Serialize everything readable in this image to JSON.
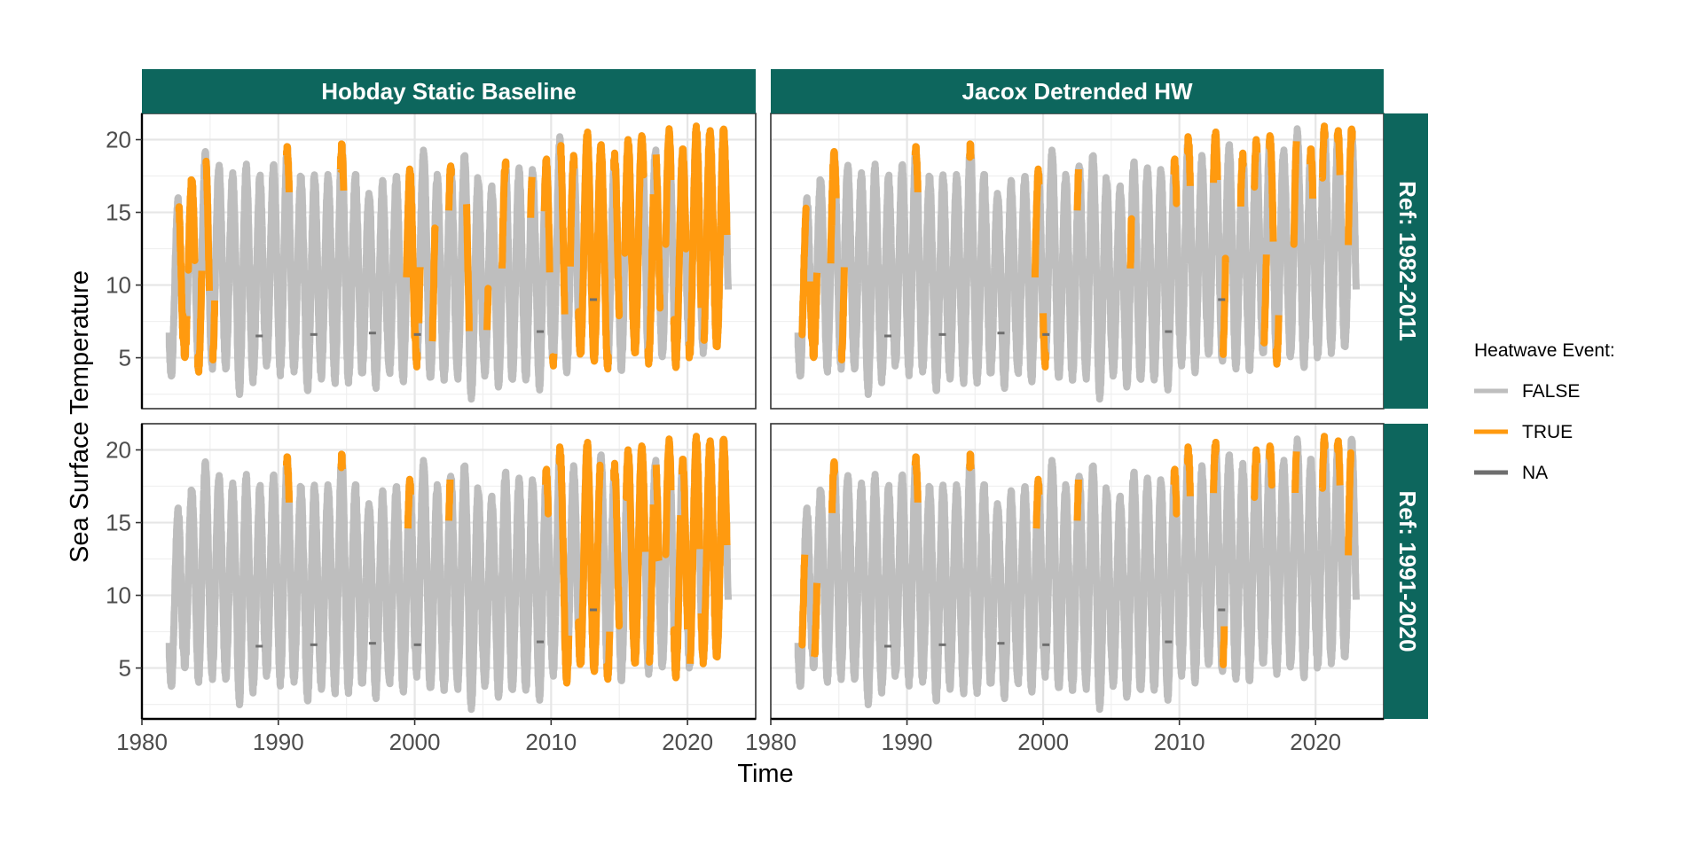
{
  "chart_data": {
    "type": "line",
    "facets": {
      "columns": [
        "Hobday Static Baseline",
        "Jacox Detrended HW"
      ],
      "rows": [
        "Ref: 1982-2011",
        "Ref: 1991-2020"
      ]
    },
    "xlabel": "Time",
    "ylabel": "Sea Surface Temperature",
    "xlim": [
      1980,
      2025
    ],
    "ylim": [
      1.5,
      21.8
    ],
    "x_ticks": [
      1980,
      1990,
      2000,
      2010,
      2020
    ],
    "y_ticks": [
      5,
      10,
      15,
      20
    ],
    "x_tick_labels": [
      "1980",
      "1990",
      "2000",
      "2010",
      "2020"
    ],
    "y_tick_labels": [
      "5",
      "10",
      "15",
      "20"
    ],
    "grid": true,
    "legend": {
      "title": "Heatwave Event:",
      "position": "right",
      "entries": [
        {
          "label": "FALSE",
          "color": "#bebebe"
        },
        {
          "label": "TRUE",
          "color": "#ff9a0f"
        },
        {
          "label": "NA",
          "color": "#6e6e6e"
        }
      ]
    },
    "series_years": [
      1982,
      1983,
      1984,
      1985,
      1986,
      1987,
      1988,
      1989,
      1990,
      1991,
      1992,
      1993,
      1994,
      1995,
      1996,
      1997,
      1998,
      1999,
      2000,
      2001,
      2002,
      2003,
      2004,
      2005,
      2006,
      2007,
      2008,
      2009,
      2010,
      2011,
      2012,
      2013,
      2014,
      2015,
      2016,
      2017,
      2018,
      2019,
      2020,
      2021,
      2022
    ],
    "annual_max": [
      15.8,
      17.0,
      18.8,
      17.9,
      17.3,
      17.9,
      17.2,
      17.9,
      19.2,
      17.2,
      17.3,
      17.2,
      19.4,
      17.4,
      16.1,
      16.8,
      17.2,
      17.6,
      18.9,
      17.3,
      18.1,
      18.7,
      17.1,
      16.5,
      18.2,
      17.7,
      17.6,
      18.4,
      19.8,
      18.5,
      20.2,
      19.4,
      18.7,
      19.8,
      20.0,
      19.1,
      20.3,
      19.0,
      20.6,
      20.4,
      20.4
    ],
    "annual_min": [
      3.9,
      5.3,
      4.4,
      4.6,
      4.4,
      2.9,
      3.7,
      4.7,
      4.2,
      4.3,
      3.1,
      3.9,
      3.6,
      3.6,
      4.1,
      3.3,
      4.2,
      3.6,
      4.8,
      3.7,
      3.7,
      3.9,
      2.6,
      4.1,
      3.3,
      3.6,
      3.7,
      3.2,
      4.8,
      4.4,
      5.4,
      5.0,
      4.6,
      4.5,
      5.6,
      5.0,
      5.2,
      4.7,
      5.3,
      5.7,
      5.8
    ],
    "heatwave_intervals": [
      [
        [
          [
            1982.7,
            1983.3
          ],
          [
            1983.4,
            1983.9
          ],
          [
            1984.1,
            1984.4
          ],
          [
            1984.7,
            1984.95
          ],
          [
            1985.2,
            1985.35
          ],
          [
            1990.6,
            1990.8
          ],
          [
            1994.55,
            1994.8
          ],
          [
            1999.4,
            2000.2
          ],
          [
            2000.3,
            2000.4
          ],
          [
            2001.3,
            2001.5
          ],
          [
            2002.5,
            2002.7
          ],
          [
            2003.8,
            2004.0
          ],
          [
            2005.3,
            2005.4
          ],
          [
            2006.4,
            2006.7
          ],
          [
            2008.5,
            2008.6
          ],
          [
            2009.5,
            2009.9
          ],
          [
            2010.1,
            2010.2
          ],
          [
            2010.7,
            2011.0
          ],
          [
            2011.4,
            2011.7
          ],
          [
            2012.0,
            2014.2
          ],
          [
            2014.6,
            2015.0
          ],
          [
            2015.4,
            2016.8
          ],
          [
            2017.1,
            2017.5
          ],
          [
            2017.7,
            2018.0
          ],
          [
            2018.4,
            2018.8
          ],
          [
            2019.0,
            2019.9
          ],
          [
            2020.1,
            2021.0
          ],
          [
            2021.2,
            2022.9
          ]
        ],
        [
          [
            1982.3,
            1982.6
          ],
          [
            1982.9,
            1983.4
          ],
          [
            1984.4,
            1984.8
          ],
          [
            1985.2,
            1985.4
          ],
          [
            1990.6,
            1990.8
          ],
          [
            1994.6,
            1994.7
          ],
          [
            1999.4,
            1999.7
          ],
          [
            2000.0,
            2000.2
          ],
          [
            2002.5,
            2002.6
          ],
          [
            2006.4,
            2006.5
          ],
          [
            2009.6,
            2009.8
          ],
          [
            2010.6,
            2010.8
          ],
          [
            2012.5,
            2012.8
          ],
          [
            2013.2,
            2013.4
          ],
          [
            2014.5,
            2014.7
          ],
          [
            2015.5,
            2015.7
          ],
          [
            2016.2,
            2016.4
          ],
          [
            2016.6,
            2016.9
          ],
          [
            2017.1,
            2017.3
          ],
          [
            2018.4,
            2018.6
          ],
          [
            2019.6,
            2019.8
          ],
          [
            2020.5,
            2020.7
          ],
          [
            2021.6,
            2021.8
          ],
          [
            2022.4,
            2022.7
          ]
        ]
      ],
      [
        [
          [
            1990.6,
            1990.8
          ],
          [
            1994.6,
            1994.7
          ],
          [
            1999.5,
            1999.7
          ],
          [
            2002.5,
            2002.6
          ],
          [
            2009.6,
            2009.8
          ],
          [
            2010.6,
            2011.3
          ],
          [
            2012.0,
            2013.6
          ],
          [
            2014.1,
            2014.3
          ],
          [
            2014.6,
            2015.0
          ],
          [
            2015.5,
            2016.9
          ],
          [
            2017.2,
            2017.5
          ],
          [
            2017.7,
            2017.9
          ],
          [
            2018.4,
            2018.8
          ],
          [
            2019.0,
            2019.5
          ],
          [
            2019.6,
            2020.0
          ],
          [
            2020.2,
            2020.9
          ],
          [
            2021.0,
            2022.9
          ]
        ],
        [
          [
            1982.3,
            1982.5
          ],
          [
            1983.2,
            1983.4
          ],
          [
            1984.5,
            1984.7
          ],
          [
            1990.6,
            1990.8
          ],
          [
            1994.6,
            1994.7
          ],
          [
            1999.5,
            1999.7
          ],
          [
            2002.5,
            2002.6
          ],
          [
            2009.6,
            2009.8
          ],
          [
            2010.6,
            2010.8
          ],
          [
            2012.5,
            2012.7
          ],
          [
            2013.2,
            2013.3
          ],
          [
            2015.5,
            2015.7
          ],
          [
            2016.6,
            2016.8
          ],
          [
            2018.5,
            2018.6
          ],
          [
            2020.5,
            2020.7
          ],
          [
            2021.6,
            2021.8
          ],
          [
            2022.4,
            2022.6
          ]
        ]
      ]
    ],
    "na_points": [
      [
        1988.6,
        6.5
      ],
      [
        1992.6,
        6.6
      ],
      [
        1996.9,
        6.7
      ],
      [
        2000.2,
        6.6
      ],
      [
        2009.2,
        6.8
      ],
      [
        2013.1,
        9.0
      ]
    ]
  }
}
